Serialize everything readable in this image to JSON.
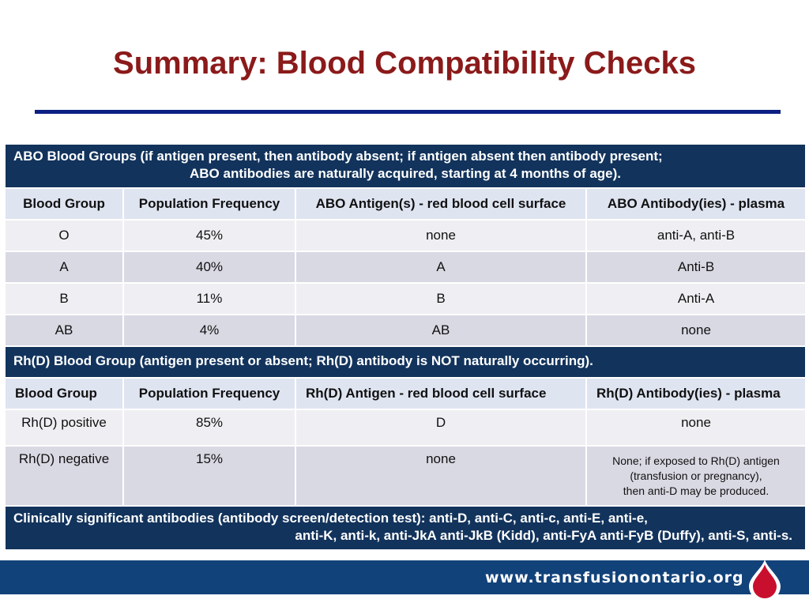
{
  "title": "Summary: Blood Compatibility Checks",
  "abo_section": {
    "header_line1": "ABO Blood Groups (if antigen present, then antibody absent; if antigen absent then antibody present;",
    "header_line2": "ABO antibodies are naturally acquired, starting at 4 months of age).",
    "columns": [
      "Blood Group",
      "Population Frequency",
      "ABO Antigen(s) - red blood cell surface",
      "ABO Antibody(ies) - plasma"
    ],
    "rows": [
      [
        "O",
        "45%",
        "none",
        "anti-A, anti-B"
      ],
      [
        "A",
        "40%",
        "A",
        "Anti-B"
      ],
      [
        "B",
        "11%",
        "B",
        "Anti-A"
      ],
      [
        "AB",
        "4%",
        "AB",
        "none"
      ]
    ]
  },
  "rh_section": {
    "header": "Rh(D) Blood Group (antigen present or absent; Rh(D) antibody is NOT naturally occurring).",
    "columns": [
      "Blood Group",
      "Population Frequency",
      "Rh(D) Antigen - red blood cell surface",
      "Rh(D) Antibody(ies) - plasma"
    ],
    "rows": [
      [
        "Rh(D) positive",
        "85%",
        "D",
        "none"
      ],
      [
        "Rh(D) negative",
        "15%",
        "none",
        ""
      ]
    ],
    "negative_note": [
      "None; if exposed to Rh(D) antigen",
      "(transfusion or pregnancy),",
      "then anti-D may be produced."
    ]
  },
  "clinical": {
    "line1": "Clinically significant antibodies (antibody screen/detection test): anti-D, anti-C, anti-c, anti-E, anti-e,",
    "line2": "anti-K, anti-k, anti-JkA anti-JkB (Kidd), anti-FyA anti-FyB (Duffy), anti-S, anti-s."
  },
  "footer": {
    "url": "www.transfusionontario.org"
  },
  "colors": {
    "title": "#8b1a1a",
    "rule": "#0c1f82",
    "band": "#12335c",
    "footer": "#12427a",
    "drop": "#c8102e"
  }
}
